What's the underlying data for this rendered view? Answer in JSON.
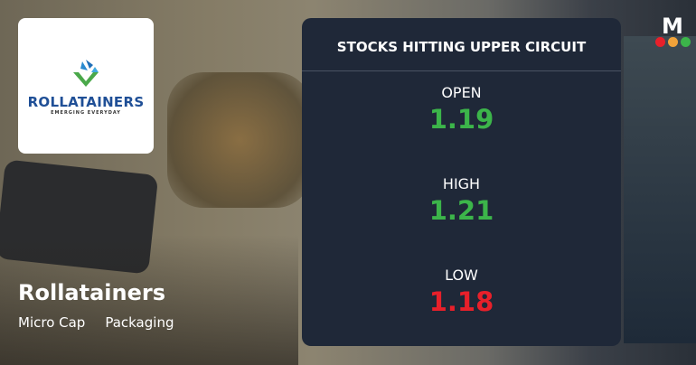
{
  "company": {
    "name": "Rollatainers",
    "logo_text": "ROLLATAINERS",
    "logo_tagline": "EMERGING EVERYDAY",
    "tags": [
      "Micro Cap",
      "Packaging"
    ]
  },
  "card": {
    "title": "STOCKS HITTING UPPER CIRCUIT",
    "rows": [
      {
        "label": "OPEN",
        "value": "1.19",
        "color": "#3cb54a"
      },
      {
        "label": "HIGH",
        "value": "1.21",
        "color": "#3cb54a"
      },
      {
        "label": "LOW",
        "value": "1.18",
        "color": "#e8202a"
      }
    ]
  },
  "brand": {
    "letter": "M",
    "dots": [
      "#e8202a",
      "#f2a33a",
      "#3cb54a"
    ]
  }
}
